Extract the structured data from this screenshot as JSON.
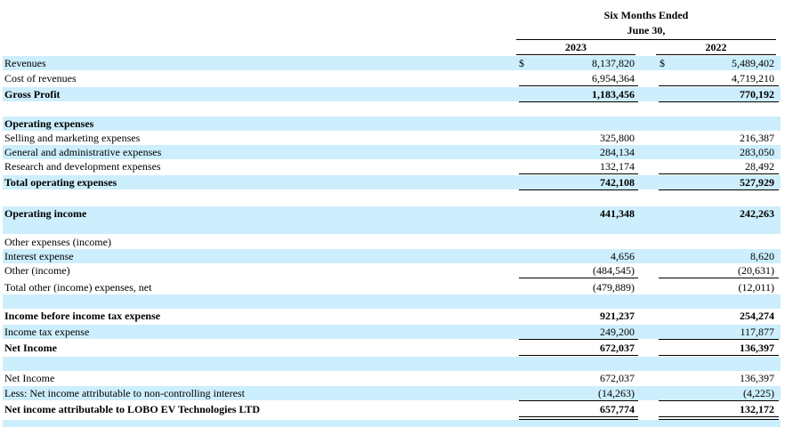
{
  "header": {
    "period_line1": "Six Months Ended",
    "period_line2": "June 30,",
    "col1_year": "2023",
    "col2_year": "2022"
  },
  "rows": [
    {
      "label": "Revenues",
      "v1": "8,137,820",
      "v2": "5,489,402",
      "cur": "$",
      "bold": false
    },
    {
      "label": "Cost of revenues",
      "v1": "6,954,364",
      "v2": "4,719,210",
      "bold": false
    },
    {
      "label": "Gross Profit",
      "v1": "1,183,456",
      "v2": "770,192",
      "bold": true
    },
    {
      "label": "Operating expenses",
      "v1": "",
      "v2": "",
      "bold": true
    },
    {
      "label": "Selling and marketing expenses",
      "v1": "325,800",
      "v2": "216,387",
      "bold": false
    },
    {
      "label": "General and administrative expenses",
      "v1": "284,134",
      "v2": "283,050",
      "bold": false
    },
    {
      "label": "Research and development expenses",
      "v1": "132,174",
      "v2": "28,492",
      "bold": false
    },
    {
      "label": "Total operating expenses",
      "v1": "742,108",
      "v2": "527,929",
      "bold": true
    },
    {
      "label": "Operating income",
      "v1": "441,348",
      "v2": "242,263",
      "bold": true
    },
    {
      "label": "Other expenses (income)",
      "v1": "",
      "v2": "",
      "bold": false
    },
    {
      "label": "Interest expense",
      "v1": "4,656",
      "v2": "8,620",
      "bold": false
    },
    {
      "label": "Other (income)",
      "v1": "(484,545)",
      "v2": "(20,631)",
      "bold": false
    },
    {
      "label": "Total other (income) expenses, net",
      "v1": "(479,889)",
      "v2": "(12,011)",
      "bold": false
    },
    {
      "label": "Income before income tax expense",
      "v1": "921,237",
      "v2": "254,274",
      "bold": true
    },
    {
      "label": "Income tax expense",
      "v1": "249,200",
      "v2": "117,877",
      "bold": false
    },
    {
      "label": "Net Income",
      "v1": "672,037",
      "v2": "136,397",
      "bold": true
    },
    {
      "label": "Net Income",
      "v1": "672,037",
      "v2": "136,397",
      "bold": false
    },
    {
      "label": "Less: Net income attributable to non-controlling interest",
      "v1": "(14,263)",
      "v2": "(4,225)",
      "bold": false
    },
    {
      "label": "Net income attributable to LOBO EV Technologies LTD",
      "v1": "657,774",
      "v2": "132,172",
      "bold": true
    }
  ]
}
